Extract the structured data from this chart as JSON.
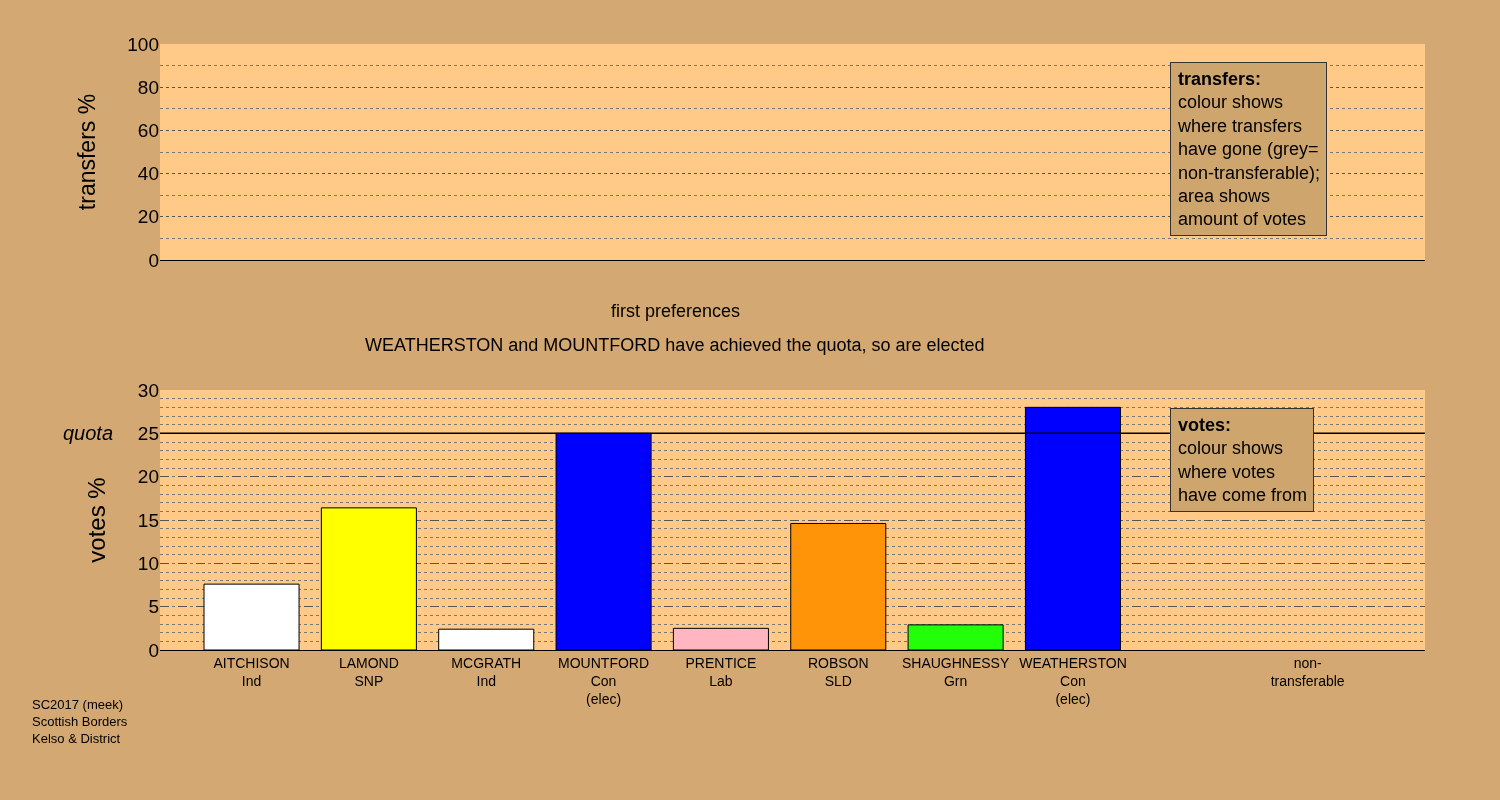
{
  "chart_data": [
    {
      "type": "bar",
      "ylabel": "transfers %",
      "ylim": [
        0,
        100
      ],
      "yticks": [
        0,
        20,
        40,
        60,
        80,
        100
      ],
      "grid": true,
      "tick_labels": "y",
      "categories": [
        null,
        null,
        null,
        null,
        null,
        null,
        null,
        null,
        null,
        null
      ],
      "values": [
        null,
        null,
        null,
        null,
        null,
        null,
        null,
        null,
        null,
        null
      ],
      "annotations": [
        "transfers:\ncolour shows\nwhere transfers\nhave gone (grey=\nnon-transferable);\narea shows\namount of votes"
      ]
    },
    {
      "type": "bar",
      "title": "first preferences",
      "subtitle": "WEATHERSTON and MOUNTFORD have achieved the quota, so are elected",
      "ylabel": "votes %",
      "ylim": [
        0,
        30
      ],
      "yticks": [
        0,
        5,
        10,
        15,
        20,
        25,
        30
      ],
      "grid": true,
      "categories": [
        "AITCHISON\nInd",
        "LAMOND\nSNP",
        "MCGRATH\nInd",
        "MOUNTFORD\nCon\n(elec)",
        "PRENTICE\nLab",
        "ROBSON\nSLD",
        "SHAUGHNESSY\nGrn",
        "WEATHERSTON\nCon\n(elec)",
        null,
        "non-\ntransferable"
      ],
      "values": [
        7.6,
        16.4,
        2.4,
        25.0,
        2.5,
        14.6,
        2.9,
        28.0,
        null,
        null
      ],
      "colors": [
        "#ffffff",
        "#ffff00",
        "#ffffff",
        "#0000ff",
        "#ffb6c1",
        "#ff9408",
        "#22ff08",
        "#0000ff",
        null,
        null
      ],
      "ref_lines": [
        {
          "axis": "y",
          "value": 25,
          "label": "quota",
          "color": "#000000",
          "line_style": "solid"
        }
      ],
      "annotations": [
        "votes:\ncolour shows\nwhere votes\nhave come from",
        "SC2017 (meek)\nScottish Borders\nKelso & District"
      ]
    }
  ]
}
